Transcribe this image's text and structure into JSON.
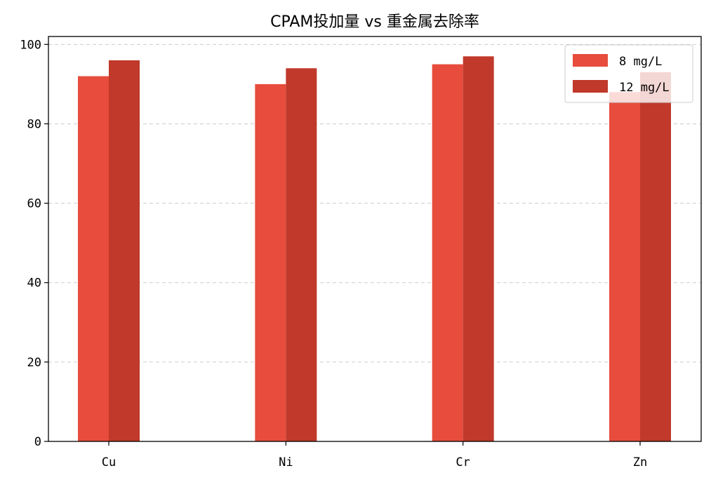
{
  "chart_data": {
    "type": "bar",
    "title": "CPAM投加量 vs 重金属去除率",
    "xlabel": "",
    "ylabel": "",
    "categories": [
      "Cu",
      "Ni",
      "Cr",
      "Zn"
    ],
    "series": [
      {
        "name": "8 mg/L",
        "values": [
          92,
          90,
          95,
          88
        ],
        "color": "#e74c3c"
      },
      {
        "name": "12 mg/L",
        "values": [
          96,
          94,
          97,
          93
        ],
        "color": "#c0392b"
      }
    ],
    "ylim": [
      0,
      102
    ],
    "yticks": [
      0,
      20,
      40,
      60,
      80,
      100
    ],
    "grid": "y-dashed",
    "legend_position": "top-right"
  }
}
